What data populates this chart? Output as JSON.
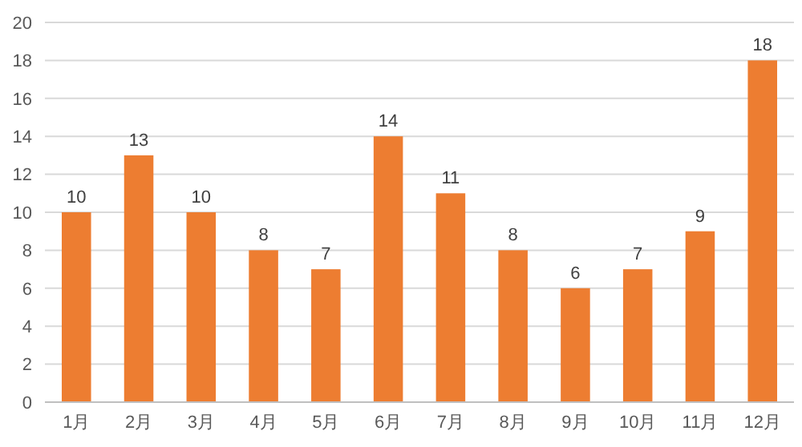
{
  "chart_data": {
    "type": "bar",
    "categories": [
      "1月",
      "2月",
      "3月",
      "4月",
      "5月",
      "6月",
      "7月",
      "8月",
      "9月",
      "10月",
      "11月",
      "12月"
    ],
    "values": [
      10,
      13,
      10,
      8,
      7,
      14,
      11,
      8,
      6,
      7,
      9,
      18
    ],
    "color": "#ed7d31",
    "ylim": [
      0,
      20
    ],
    "yticks": [
      0,
      2,
      4,
      6,
      8,
      10,
      12,
      14,
      16,
      18,
      20
    ],
    "grid": "y",
    "data_labels": true
  }
}
